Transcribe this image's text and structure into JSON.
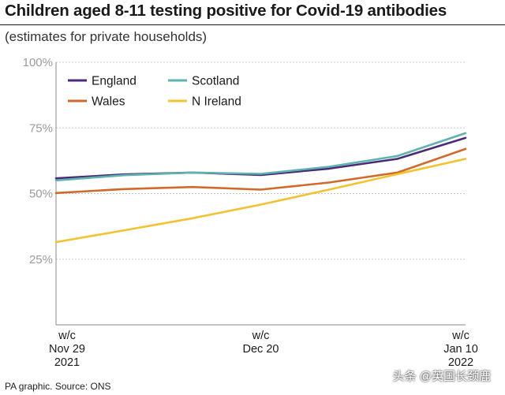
{
  "header": {
    "title": "Children aged 8-11 testing positive for Covid-19 antibodies",
    "subtitle": "(estimates for private households)"
  },
  "footer": {
    "source": "PA graphic. Source: ONS",
    "watermark": "头条 @英国长颈鹿"
  },
  "chart_data": {
    "type": "line",
    "x": [
      0,
      1,
      2,
      3,
      4,
      5,
      6
    ],
    "x_ticks": [
      {
        "x": 0,
        "lines": [
          "w/c",
          "Nov 29",
          "2021"
        ]
      },
      {
        "x": 3,
        "lines": [
          "w/c",
          "Dec 20"
        ]
      },
      {
        "x": 6,
        "lines": [
          "w/c",
          "Jan 10",
          "2022"
        ]
      }
    ],
    "ylim": [
      0,
      100
    ],
    "y_ticks": [
      25,
      50,
      75,
      100
    ],
    "y_tick_labels": [
      "25%",
      "50%",
      "75%",
      "100%"
    ],
    "grid": true,
    "legend_position": "top-left",
    "series": [
      {
        "name": "England",
        "color": "#4b2a7a",
        "values": [
          55.8,
          57.3,
          58.0,
          57.1,
          59.5,
          63.2,
          71.2
        ]
      },
      {
        "name": "Scotland",
        "color": "#5fb3ad",
        "values": [
          55.0,
          57.0,
          58.0,
          57.5,
          60.2,
          64.3,
          73.0
        ]
      },
      {
        "name": "Wales",
        "color": "#d0692a",
        "values": [
          50.2,
          51.7,
          52.5,
          51.5,
          54.2,
          58.0,
          67.0
        ]
      },
      {
        "name": "N Ireland",
        "color": "#f2c230",
        "values": [
          31.5,
          36.0,
          40.6,
          45.8,
          51.5,
          57.4,
          63.2
        ]
      }
    ]
  }
}
